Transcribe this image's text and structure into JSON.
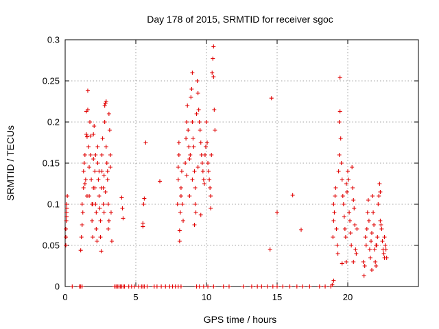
{
  "chart_data": {
    "type": "scatter",
    "title": "Day 178 of 2015, SRMTID for receiver sgoc",
    "xlabel": "GPS time / hours",
    "ylabel": "SRMTID / TECUs",
    "xlim": [
      0,
      25
    ],
    "ylim": [
      0,
      0.3
    ],
    "x_ticks": [
      0,
      5,
      10,
      15,
      20
    ],
    "x_tick_labels": [
      "0",
      "5",
      "10",
      "15",
      "20"
    ],
    "y_ticks": [
      0,
      0.05,
      0.1,
      0.15,
      0.2,
      0.25,
      0.3
    ],
    "y_tick_labels": [
      "0",
      "0.05",
      "0.1",
      "0.15",
      "0.2",
      "0.25",
      "0.3"
    ],
    "grid": true,
    "marker": "+",
    "color": "#e00000",
    "series": [
      {
        "name": "SRMTID",
        "points": [
          [
            0.05,
            0.05
          ],
          [
            0.05,
            0.06
          ],
          [
            0.08,
            0.08
          ],
          [
            0.1,
            0.085
          ],
          [
            0.1,
            0.09
          ],
          [
            0.12,
            0.095
          ],
          [
            0.15,
            0.11
          ],
          [
            0.05,
            0.07
          ],
          [
            0.1,
            0.1
          ],
          [
            0.5,
            0.0
          ],
          [
            1.0,
            0.0
          ],
          [
            1.1,
            0.0
          ],
          [
            1.2,
            0.0
          ],
          [
            1.1,
            0.044
          ],
          [
            1.15,
            0.06
          ],
          [
            1.2,
            0.075
          ],
          [
            1.2,
            0.1
          ],
          [
            1.25,
            0.09
          ],
          [
            1.3,
            0.12
          ],
          [
            1.3,
            0.14
          ],
          [
            1.35,
            0.15
          ],
          [
            1.4,
            0.125
          ],
          [
            1.4,
            0.16
          ],
          [
            1.45,
            0.13
          ],
          [
            1.5,
            0.185
          ],
          [
            1.5,
            0.213
          ],
          [
            1.55,
            0.182
          ],
          [
            1.6,
            0.238
          ],
          [
            1.6,
            0.215
          ],
          [
            1.65,
            0.17
          ],
          [
            1.7,
            0.145
          ],
          [
            1.7,
            0.11
          ],
          [
            1.75,
            0.2
          ],
          [
            1.8,
            0.183
          ],
          [
            1.8,
            0.16
          ],
          [
            1.85,
            0.13
          ],
          [
            1.9,
            0.1
          ],
          [
            1.9,
            0.08
          ],
          [
            1.95,
            0.06
          ],
          [
            2.0,
            0.155
          ],
          [
            2.0,
            0.185
          ],
          [
            2.05,
            0.195
          ],
          [
            2.1,
            0.14
          ],
          [
            2.1,
            0.12
          ],
          [
            2.15,
            0.1
          ],
          [
            2.2,
            0.09
          ],
          [
            2.2,
            0.07
          ],
          [
            2.25,
            0.055
          ],
          [
            2.3,
            0.15
          ],
          [
            2.3,
            0.17
          ],
          [
            2.35,
            0.13
          ],
          [
            2.4,
            0.11
          ],
          [
            2.45,
            0.095
          ],
          [
            2.5,
            0.08
          ],
          [
            2.5,
            0.06
          ],
          [
            2.55,
            0.043
          ],
          [
            2.6,
            0.14
          ],
          [
            2.6,
            0.16
          ],
          [
            2.65,
            0.18
          ],
          [
            2.7,
            0.12
          ],
          [
            2.7,
            0.1
          ],
          [
            2.75,
            0.09
          ],
          [
            2.8,
            0.22
          ],
          [
            2.8,
            0.2
          ],
          [
            2.85,
            0.223
          ],
          [
            2.9,
            0.225
          ],
          [
            2.9,
            0.17
          ],
          [
            2.95,
            0.15
          ],
          [
            3.0,
            0.14
          ],
          [
            3.0,
            0.13
          ],
          [
            3.05,
            0.1
          ],
          [
            3.1,
            0.08
          ],
          [
            3.1,
            0.21
          ],
          [
            3.15,
            0.19
          ],
          [
            3.2,
            0.16
          ],
          [
            3.2,
            0.145
          ],
          [
            3.25,
            0.09
          ],
          [
            3.3,
            0.055
          ],
          [
            2.0,
            0.12
          ],
          [
            1.95,
            0.1
          ],
          [
            2.4,
            0.14
          ],
          [
            2.55,
            0.12
          ],
          [
            2.75,
            0.135
          ],
          [
            3.05,
            0.07
          ],
          [
            1.55,
            0.11
          ],
          [
            2.15,
            0.16
          ],
          [
            2.85,
            0.115
          ],
          [
            3.5,
            0.0
          ],
          [
            3.6,
            0.0
          ],
          [
            3.7,
            0.0
          ],
          [
            3.8,
            0.0
          ],
          [
            3.9,
            0.0
          ],
          [
            4.0,
            0.0
          ],
          [
            4.1,
            0.0
          ],
          [
            4.2,
            0.0
          ],
          [
            4.5,
            0.0
          ],
          [
            4.7,
            0.0
          ],
          [
            4.9,
            0.0
          ],
          [
            4.0,
            0.108
          ],
          [
            4.05,
            0.095
          ],
          [
            4.1,
            0.083
          ],
          [
            5.2,
            0.0
          ],
          [
            5.4,
            0.0
          ],
          [
            5.5,
            0.0
          ],
          [
            5.6,
            0.0
          ],
          [
            5.8,
            0.0
          ],
          [
            6.3,
            0.0
          ],
          [
            6.5,
            0.0
          ],
          [
            6.8,
            0.0
          ],
          [
            7.1,
            0.0
          ],
          [
            7.4,
            0.0
          ],
          [
            7.6,
            0.0
          ],
          [
            7.8,
            0.0
          ],
          [
            8.0,
            0.0
          ],
          [
            8.2,
            0.0
          ],
          [
            5.5,
            0.073
          ],
          [
            5.5,
            0.077
          ],
          [
            5.55,
            0.1
          ],
          [
            5.6,
            0.107
          ],
          [
            5.7,
            0.175
          ],
          [
            6.7,
            0.128
          ],
          [
            7.95,
            0.1
          ],
          [
            8.0,
            0.13
          ],
          [
            8.0,
            0.145
          ],
          [
            8.05,
            0.16
          ],
          [
            8.05,
            0.175
          ],
          [
            8.1,
            0.068
          ],
          [
            8.1,
            0.055
          ],
          [
            8.15,
            0.09
          ],
          [
            8.2,
            0.11
          ],
          [
            8.2,
            0.12
          ],
          [
            8.25,
            0.14
          ],
          [
            8.3,
            0.1
          ],
          [
            8.35,
            0.08
          ],
          [
            8.5,
            0.15
          ],
          [
            8.55,
            0.18
          ],
          [
            8.6,
            0.2
          ],
          [
            8.65,
            0.22
          ],
          [
            8.7,
            0.19
          ],
          [
            8.75,
            0.17
          ],
          [
            8.8,
            0.155
          ],
          [
            8.85,
            0.16
          ],
          [
            8.9,
            0.23
          ],
          [
            8.95,
            0.24
          ],
          [
            9.0,
            0.26
          ],
          [
            9.0,
            0.2
          ],
          [
            9.05,
            0.18
          ],
          [
            9.1,
            0.17
          ],
          [
            9.15,
            0.14
          ],
          [
            9.2,
            0.12
          ],
          [
            9.2,
            0.1
          ],
          [
            9.25,
            0.09
          ],
          [
            9.3,
            0.21
          ],
          [
            9.35,
            0.25
          ],
          [
            9.4,
            0.235
          ],
          [
            9.45,
            0.215
          ],
          [
            9.5,
            0.2
          ],
          [
            9.55,
            0.19
          ],
          [
            9.6,
            0.175
          ],
          [
            9.65,
            0.16
          ],
          [
            9.7,
            0.15
          ],
          [
            9.75,
            0.14
          ],
          [
            9.8,
            0.13
          ],
          [
            9.85,
            0.125
          ],
          [
            9.9,
            0.16
          ],
          [
            9.95,
            0.17
          ],
          [
            10.0,
            0.2
          ],
          [
            10.05,
            0.175
          ],
          [
            10.1,
            0.15
          ],
          [
            10.15,
            0.14
          ],
          [
            10.2,
            0.13
          ],
          [
            10.25,
            0.12
          ],
          [
            10.3,
            0.11
          ],
          [
            10.35,
            0.16
          ],
          [
            10.4,
            0.26
          ],
          [
            10.45,
            0.277
          ],
          [
            10.5,
            0.292
          ],
          [
            10.5,
            0.255
          ],
          [
            10.55,
            0.215
          ],
          [
            10.6,
            0.19
          ],
          [
            10.3,
            0.095
          ],
          [
            9.15,
            0.075
          ],
          [
            8.8,
            0.11
          ],
          [
            9.6,
            0.087
          ],
          [
            9.0,
            0.13
          ],
          [
            9.4,
            0.145
          ],
          [
            8.6,
            0.135
          ],
          [
            9.3,
            0.0
          ],
          [
            9.5,
            0.0
          ],
          [
            9.8,
            0.0
          ],
          [
            10.1,
            0.0
          ],
          [
            10.5,
            0.0
          ],
          [
            11.2,
            0.0
          ],
          [
            11.6,
            0.0
          ],
          [
            12.6,
            0.0
          ],
          [
            13.2,
            0.0
          ],
          [
            13.6,
            0.0
          ],
          [
            13.9,
            0.0
          ],
          [
            14.3,
            0.0
          ],
          [
            14.7,
            0.0
          ],
          [
            15.0,
            0.0
          ],
          [
            15.4,
            0.0
          ],
          [
            15.9,
            0.0
          ],
          [
            16.4,
            0.0
          ],
          [
            16.8,
            0.0
          ],
          [
            17.3,
            0.0
          ],
          [
            18.0,
            0.0
          ],
          [
            18.4,
            0.0
          ],
          [
            18.8,
            0.0
          ],
          [
            14.5,
            0.045
          ],
          [
            14.6,
            0.229
          ],
          [
            15.0,
            0.09
          ],
          [
            16.1,
            0.111
          ],
          [
            16.7,
            0.069
          ],
          [
            18.9,
            0.002
          ],
          [
            19.0,
            0.007
          ],
          [
            18.95,
            0.06
          ],
          [
            19.0,
            0.08
          ],
          [
            19.0,
            0.1
          ],
          [
            19.05,
            0.09
          ],
          [
            19.1,
            0.11
          ],
          [
            19.15,
            0.12
          ],
          [
            19.2,
            0.07
          ],
          [
            19.25,
            0.05
          ],
          [
            19.3,
            0.04
          ],
          [
            19.35,
            0.14
          ],
          [
            19.4,
            0.16
          ],
          [
            19.4,
            0.2
          ],
          [
            19.45,
            0.213
          ],
          [
            19.45,
            0.254
          ],
          [
            19.5,
            0.18
          ],
          [
            19.55,
            0.15
          ],
          [
            19.6,
            0.13
          ],
          [
            19.65,
            0.11
          ],
          [
            19.7,
            0.1
          ],
          [
            19.75,
            0.085
          ],
          [
            19.8,
            0.07
          ],
          [
            19.85,
            0.06
          ],
          [
            19.9,
            0.125
          ],
          [
            19.95,
            0.115
          ],
          [
            20.0,
            0.14
          ],
          [
            20.05,
            0.13
          ],
          [
            20.1,
            0.09
          ],
          [
            20.15,
            0.08
          ],
          [
            20.2,
            0.065
          ],
          [
            20.25,
            0.05
          ],
          [
            20.3,
            0.145
          ],
          [
            20.35,
            0.12
          ],
          [
            20.4,
            0.105
          ],
          [
            20.45,
            0.095
          ],
          [
            20.5,
            0.075
          ],
          [
            20.55,
            0.045
          ],
          [
            20.6,
            0.04
          ],
          [
            20.65,
            0.07
          ],
          [
            19.6,
            0.028
          ],
          [
            19.9,
            0.03
          ],
          [
            20.4,
            0.03
          ],
          [
            21.1,
            0.03
          ],
          [
            21.15,
            0.013
          ],
          [
            21.2,
            0.025
          ],
          [
            21.25,
            0.06
          ],
          [
            21.3,
            0.05
          ],
          [
            21.35,
            0.07
          ],
          [
            21.4,
            0.09
          ],
          [
            21.45,
            0.105
          ],
          [
            21.5,
            0.08
          ],
          [
            21.55,
            0.045
          ],
          [
            21.6,
            0.035
          ],
          [
            21.65,
            0.055
          ],
          [
            21.7,
            0.065
          ],
          [
            21.75,
            0.11
          ],
          [
            21.8,
            0.09
          ],
          [
            21.85,
            0.075
          ],
          [
            21.9,
            0.045
          ],
          [
            21.95,
            0.03
          ],
          [
            22.0,
            0.025
          ],
          [
            22.05,
            0.05
          ],
          [
            22.1,
            0.06
          ],
          [
            22.15,
            0.1
          ],
          [
            22.2,
            0.11
          ],
          [
            22.25,
            0.125
          ],
          [
            22.3,
            0.115
          ],
          [
            22.35,
            0.075
          ],
          [
            22.4,
            0.07
          ],
          [
            22.45,
            0.055
          ],
          [
            22.5,
            0.045
          ],
          [
            22.55,
            0.04
          ],
          [
            22.6,
            0.035
          ],
          [
            22.65,
            0.05
          ],
          [
            22.7,
            0.045
          ],
          [
            22.75,
            0.035
          ],
          [
            21.7,
            0.02
          ],
          [
            22.0,
            0.05
          ],
          [
            22.3,
            0.08
          ],
          [
            22.6,
            0.06
          ]
        ]
      }
    ]
  }
}
